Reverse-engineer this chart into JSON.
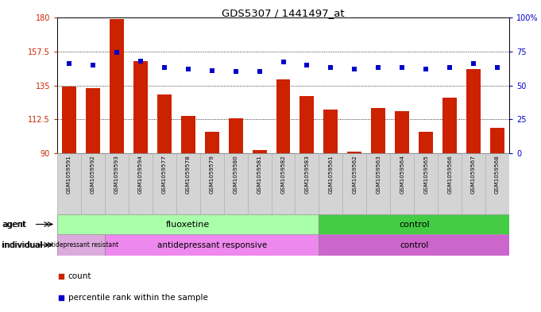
{
  "title": "GDS5307 / 1441497_at",
  "samples": [
    "GSM1059591",
    "GSM1059592",
    "GSM1059593",
    "GSM1059594",
    "GSM1059577",
    "GSM1059578",
    "GSM1059579",
    "GSM1059580",
    "GSM1059581",
    "GSM1059582",
    "GSM1059583",
    "GSM1059561",
    "GSM1059562",
    "GSM1059563",
    "GSM1059564",
    "GSM1059565",
    "GSM1059566",
    "GSM1059567",
    "GSM1059568"
  ],
  "counts": [
    134,
    133,
    179,
    151,
    129,
    115,
    104,
    113,
    92,
    139,
    128,
    119,
    91,
    120,
    118,
    104,
    127,
    146,
    107
  ],
  "percentiles": [
    66,
    65,
    74,
    68,
    63,
    62,
    61,
    60,
    60,
    67,
    65,
    63,
    62,
    63,
    63,
    62,
    63,
    66,
    63
  ],
  "y_min": 90,
  "y_max": 180,
  "y_ticks": [
    90,
    112.5,
    135,
    157.5,
    180
  ],
  "y_tick_labels": [
    "90",
    "112.5",
    "135",
    "157.5",
    "180"
  ],
  "y2_ticks": [
    0,
    25,
    50,
    75,
    100
  ],
  "y2_tick_labels": [
    "0",
    "25",
    "50",
    "75",
    "100%"
  ],
  "bar_color": "#cc2200",
  "dot_color": "#0000cc",
  "plot_bg": "#ffffff",
  "agent_fluoxetine_count": 11,
  "agent_control_count": 8,
  "individual_resistant_count": 2,
  "individual_responsive_count": 9,
  "individual_control_count": 8,
  "agent_row_color_fluoxetine": "#aaffaa",
  "agent_row_color_control": "#44cc44",
  "individual_row_color_resistant": "#ddaadd",
  "individual_row_color_responsive": "#ee88ee",
  "individual_row_color_control": "#cc66cc",
  "legend_count_label": "count",
  "legend_percentile_label": "percentile rank within the sample",
  "agent_label": "agent",
  "individual_label": "individual",
  "fluoxetine_label": "fluoxetine",
  "control_label": "control",
  "resistant_label": "antidepressant resistant",
  "responsive_label": "antidepressant responsive",
  "ind_control_label": "control"
}
